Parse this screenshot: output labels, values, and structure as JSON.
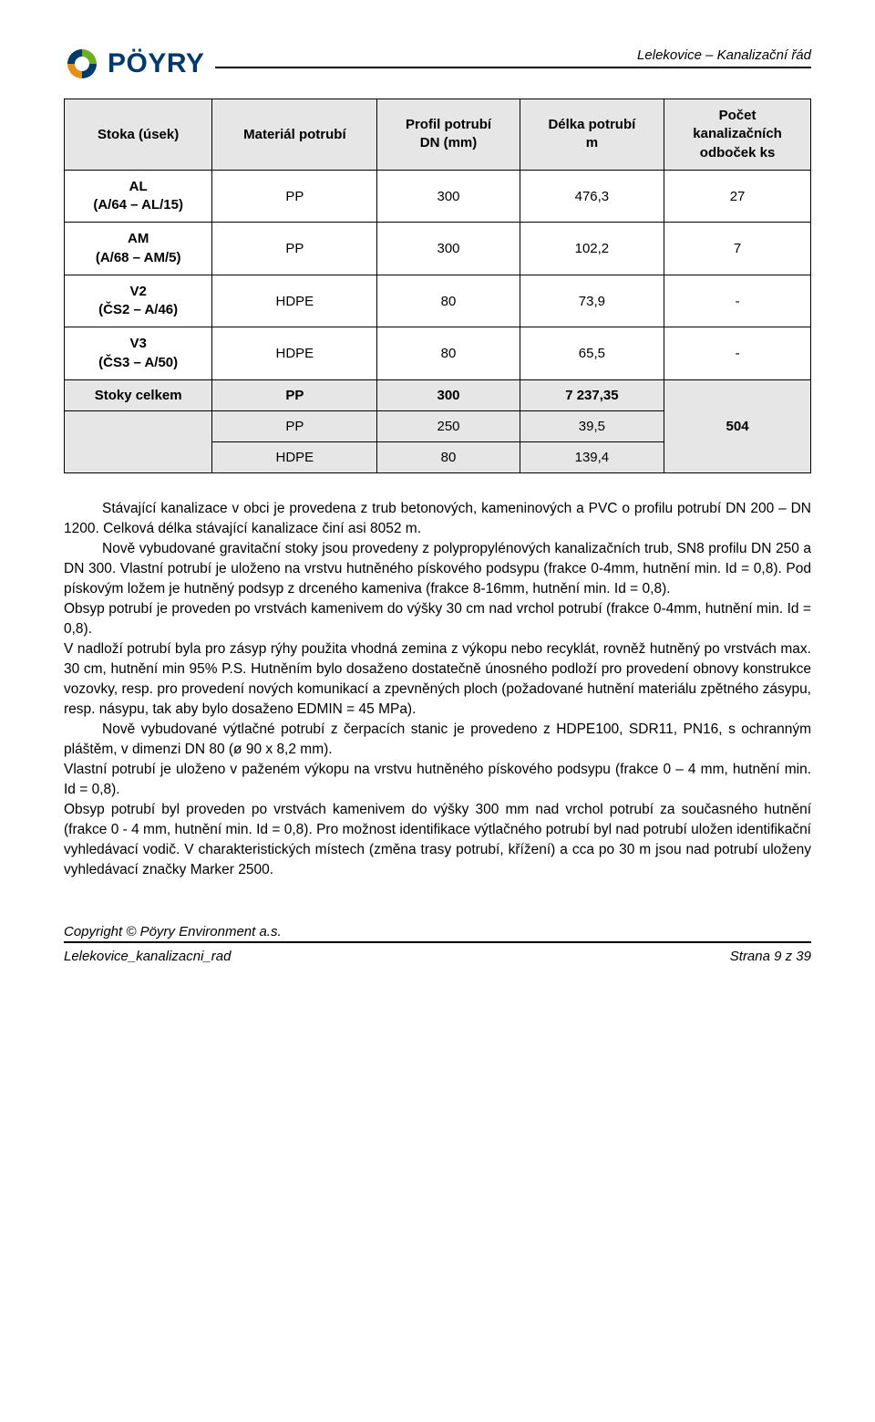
{
  "header": {
    "logo_text": "PÖYRY",
    "doc_title": "Lelekovice – Kanalizační řád"
  },
  "table": {
    "columns": [
      "Stoka (úsek)",
      "Materiál potrubí",
      "Profil potrubí\nDN (mm)",
      "Délka potrubí\nm",
      "Počet\nkanalizačních\nodboček ks"
    ],
    "rows": [
      {
        "cells": [
          "AL\n(A/64 – AL/15)",
          "PP",
          "300",
          "476,3",
          "27"
        ]
      },
      {
        "cells": [
          "AM\n(A/68 – AM/5)",
          "PP",
          "300",
          "102,2",
          "7"
        ]
      },
      {
        "cells": [
          "V2\n(ČS2 – A/46)",
          "HDPE",
          "80",
          "73,9",
          "-"
        ]
      },
      {
        "cells": [
          "V3\n(ČS3 – A/50)",
          "HDPE",
          "80",
          "65,5",
          "-"
        ]
      }
    ],
    "totals": {
      "cells": [
        "Stoky celkem",
        "PP",
        "300",
        "7 237,35",
        "504"
      ]
    },
    "subrows": [
      {
        "cells": [
          "PP",
          "250",
          "39,5"
        ]
      },
      {
        "cells": [
          "HDPE",
          "80",
          "139,4"
        ]
      }
    ]
  },
  "body": {
    "p1": "Stávající kanalizace v obci je provedena z trub betonových, kameninových a PVC o profilu potrubí DN 200 – DN 1200. Celková délka stávající kanalizace činí asi 8052 m.",
    "p2": "Nově vybudované gravitační stoky jsou provedeny z polypropylénových kanalizačních trub, SN8 profilu DN 250 a DN 300. Vlastní potrubí je uloženo na vrstvu hutněného pískového podsypu (frakce 0-4mm, hutnění min. Id = 0,8). Pod pískovým ložem je hutněný podsyp z drceného kameniva (frakce 8-16mm, hutnění min. Id = 0,8).",
    "p3": "Obsyp potrubí je proveden po vrstvách kamenivem do výšky 30 cm nad vrchol potrubí (frakce 0-4mm, hutnění min. Id = 0,8).",
    "p4": "V nadloží potrubí byla pro zásyp rýhy použita vhodná zemina z výkopu nebo recyklát, rovněž hutněný po vrstvách max. 30 cm, hutnění min 95% P.S. Hutněním bylo dosaženo dostatečně únosného podloží pro provedení obnovy konstrukce vozovky, resp. pro provedení nových komunikací a zpevněných ploch (požadované hutnění materiálu zpětného zásypu, resp. násypu, tak aby bylo dosaženo EDMIN = 45 MPa).",
    "p5": "Nově vybudované výtlačné potrubí z čerpacích stanic je provedeno z HDPE100, SDR11, PN16, s ochranným pláštěm, v dimenzi DN 80 (ø 90 x 8,2 mm).",
    "p6": "Vlastní potrubí je uloženo v paženém výkopu na vrstvu hutněného pískového podsypu (frakce 0 – 4 mm, hutnění min. Id = 0,8).",
    "p7": "Obsyp potrubí byl proveden po vrstvách kamenivem do výšky 300 mm nad vrchol potrubí za současného hutnění (frakce 0 - 4 mm, hutnění min. Id = 0,8). Pro možnost identifikace výtlačného potrubí byl nad potrubí uložen identifikační vyhledávací vodič. V charakteristických místech (změna trasy potrubí, křížení) a cca po 30 m jsou nad potrubí uloženy vyhledávací značky Marker 2500."
  },
  "footer": {
    "copyright": "Copyright © Pöyry Environment a.s.",
    "left": "Lelekovice_kanalizacni_rad",
    "right": "Strana 9 z 39"
  },
  "colors": {
    "header_bg": "#e6e6e6",
    "text": "#000000",
    "logo_blue": "#003a6a",
    "logo_green": "#6bb023",
    "logo_orange": "#e48f1b"
  }
}
